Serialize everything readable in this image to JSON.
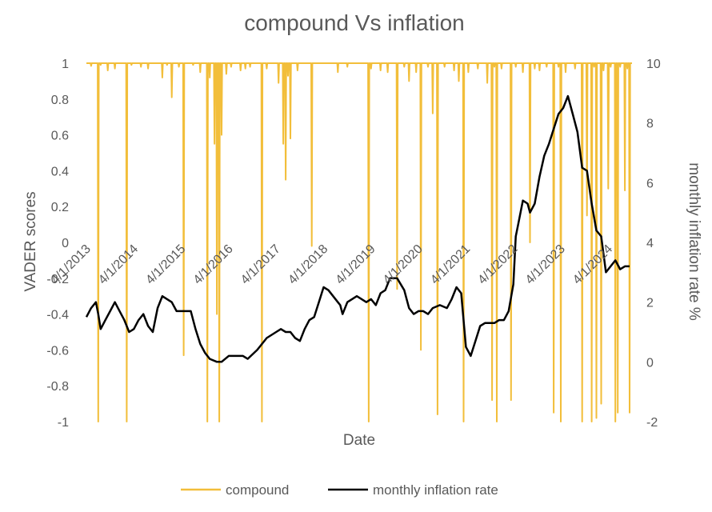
{
  "chart_data": {
    "type": "line",
    "title": "compound Vs inflation",
    "xlabel": "Date",
    "ylabel": "VADER scores",
    "y2label": "monthly inflation rate %",
    "ylim": [
      -1,
      1
    ],
    "y2lim": [
      -2,
      10
    ],
    "y_ticks": [
      "1",
      "0.8",
      "0.6",
      "0.4",
      "0.2",
      "0",
      "-0.2",
      "-0.4",
      "-0.6",
      "-0.8",
      "-1"
    ],
    "y2_ticks": [
      "10",
      "8",
      "6",
      "4",
      "2",
      "0",
      "-2"
    ],
    "x_tick_labels": [
      "4/1/2013",
      "4/1/2014",
      "4/1/2015",
      "4/1/2016",
      "4/1/2017",
      "4/1/2018",
      "4/1/2019",
      "4/1/2020",
      "4/1/2021",
      "4/1/2022",
      "4/1/2023",
      "4/1/2024"
    ],
    "x_tick_years": [
      2013.0,
      2014.0,
      2015.0,
      2016.0,
      2017.0,
      2018.0,
      2019.0,
      2020.0,
      2021.0,
      2022.0,
      2023.0,
      2024.0
    ],
    "xlim": [
      2013.0,
      2024.5
    ],
    "grid": false,
    "legend": "bottom",
    "series": [
      {
        "name": "compound",
        "axis": "left",
        "color": "#F2BE3A",
        "baseline": 1.0,
        "dips": [
          [
            2013.1,
            0.985
          ],
          [
            2013.25,
            -1.0
          ],
          [
            2013.3,
            0.99
          ],
          [
            2013.45,
            0.96
          ],
          [
            2013.6,
            0.97
          ],
          [
            2013.85,
            -1.0
          ],
          [
            2013.95,
            0.99
          ],
          [
            2014.15,
            0.98
          ],
          [
            2014.3,
            0.97
          ],
          [
            2014.6,
            0.92
          ],
          [
            2014.7,
            0.99
          ],
          [
            2014.8,
            0.81
          ],
          [
            2014.95,
            0.98
          ],
          [
            2015.05,
            -0.63
          ],
          [
            2015.25,
            0.99
          ],
          [
            2015.4,
            0.95
          ],
          [
            2015.55,
            -1.0
          ],
          [
            2015.6,
            0.92
          ],
          [
            2015.7,
            0.55
          ],
          [
            2015.75,
            -0.4
          ],
          [
            2015.8,
            -1.0
          ],
          [
            2015.85,
            0.6
          ],
          [
            2015.95,
            0.94
          ],
          [
            2016.05,
            0.98
          ],
          [
            2016.25,
            0.96
          ],
          [
            2016.35,
            0.97
          ],
          [
            2016.45,
            0.98
          ],
          [
            2016.7,
            -1.0
          ],
          [
            2016.8,
            0.97
          ],
          [
            2017.05,
            0.89
          ],
          [
            2017.15,
            0.55
          ],
          [
            2017.2,
            0.35
          ],
          [
            2017.25,
            0.93
          ],
          [
            2017.3,
            0.58
          ],
          [
            2017.45,
            0.96
          ],
          [
            2017.75,
            -0.02
          ],
          [
            2018.3,
            0.95
          ],
          [
            2018.5,
            0.98
          ],
          [
            2018.95,
            -1.0
          ],
          [
            2019.0,
            0.97
          ],
          [
            2019.2,
            0.96
          ],
          [
            2019.35,
            0.95
          ],
          [
            2019.55,
            -0.26
          ],
          [
            2019.7,
            0.98
          ],
          [
            2019.8,
            0.9
          ],
          [
            2019.95,
            0.95
          ],
          [
            2020.05,
            -0.6
          ],
          [
            2020.2,
            0.98
          ],
          [
            2020.3,
            0.72
          ],
          [
            2020.4,
            -0.96
          ],
          [
            2020.55,
            0.98
          ],
          [
            2020.75,
            0.96
          ],
          [
            2020.85,
            0.9
          ],
          [
            2020.95,
            -1.0
          ],
          [
            2021.05,
            0.95
          ],
          [
            2021.25,
            0.97
          ],
          [
            2021.45,
            0.89
          ],
          [
            2021.55,
            -0.88
          ],
          [
            2021.6,
            0.98
          ],
          [
            2021.65,
            -1.0
          ],
          [
            2021.75,
            0.97
          ],
          [
            2021.95,
            -0.88
          ],
          [
            2022.05,
            0.98
          ],
          [
            2022.2,
            0.95
          ],
          [
            2022.35,
            0.0
          ],
          [
            2022.45,
            0.97
          ],
          [
            2022.55,
            0.96
          ],
          [
            2022.7,
            0.98
          ],
          [
            2022.85,
            -0.95
          ],
          [
            2022.95,
            0.98
          ],
          [
            2023.0,
            -1.0
          ],
          [
            2023.1,
            0.95
          ],
          [
            2023.3,
            0.97
          ],
          [
            2023.45,
            -1.0
          ],
          [
            2023.55,
            0.15
          ],
          [
            2023.65,
            -1.0
          ],
          [
            2023.7,
            0.98
          ],
          [
            2023.75,
            -0.98
          ],
          [
            2023.85,
            -0.9
          ],
          [
            2023.9,
            0.96
          ],
          [
            2024.0,
            0.3
          ],
          [
            2024.05,
            0.98
          ],
          [
            2024.15,
            -1.0
          ],
          [
            2024.2,
            -0.95
          ],
          [
            2024.25,
            0.98
          ],
          [
            2024.35,
            0.29
          ],
          [
            2024.4,
            0.97
          ],
          [
            2024.45,
            -0.95
          ]
        ]
      },
      {
        "name": "monthly inflation rate",
        "axis": "right",
        "color": "#000000",
        "points": [
          [
            2013.0,
            1.5
          ],
          [
            2013.1,
            1.8
          ],
          [
            2013.2,
            2.0
          ],
          [
            2013.25,
            1.6
          ],
          [
            2013.3,
            1.1
          ],
          [
            2013.4,
            1.4
          ],
          [
            2013.5,
            1.7
          ],
          [
            2013.6,
            2.0
          ],
          [
            2013.7,
            1.7
          ],
          [
            2013.8,
            1.4
          ],
          [
            2013.9,
            1.0
          ],
          [
            2014.0,
            1.1
          ],
          [
            2014.1,
            1.4
          ],
          [
            2014.2,
            1.6
          ],
          [
            2014.3,
            1.2
          ],
          [
            2014.4,
            1.0
          ],
          [
            2014.5,
            1.8
          ],
          [
            2014.6,
            2.2
          ],
          [
            2014.7,
            2.1
          ],
          [
            2014.8,
            2.0
          ],
          [
            2014.9,
            1.7
          ],
          [
            2015.05,
            1.7
          ],
          [
            2015.2,
            1.7
          ],
          [
            2015.3,
            1.1
          ],
          [
            2015.4,
            0.6
          ],
          [
            2015.5,
            0.3
          ],
          [
            2015.6,
            0.1
          ],
          [
            2015.75,
            0.0
          ],
          [
            2015.85,
            0.0
          ],
          [
            2016.0,
            0.2
          ],
          [
            2016.15,
            0.2
          ],
          [
            2016.3,
            0.2
          ],
          [
            2016.4,
            0.1
          ],
          [
            2016.6,
            0.4
          ],
          [
            2016.8,
            0.8
          ],
          [
            2017.0,
            1.0
          ],
          [
            2017.1,
            1.1
          ],
          [
            2017.2,
            1.0
          ],
          [
            2017.3,
            1.0
          ],
          [
            2017.4,
            0.8
          ],
          [
            2017.5,
            0.7
          ],
          [
            2017.6,
            1.1
          ],
          [
            2017.7,
            1.4
          ],
          [
            2017.8,
            1.5
          ],
          [
            2017.9,
            2.0
          ],
          [
            2018.0,
            2.5
          ],
          [
            2018.1,
            2.4
          ],
          [
            2018.2,
            2.2
          ],
          [
            2018.3,
            2.0
          ],
          [
            2018.35,
            1.9
          ],
          [
            2018.4,
            1.6
          ],
          [
            2018.5,
            2.0
          ],
          [
            2018.6,
            2.1
          ],
          [
            2018.7,
            2.2
          ],
          [
            2018.8,
            2.1
          ],
          [
            2018.9,
            2.0
          ],
          [
            2019.0,
            2.1
          ],
          [
            2019.1,
            1.9
          ],
          [
            2019.2,
            2.3
          ],
          [
            2019.3,
            2.4
          ],
          [
            2019.4,
            2.8
          ],
          [
            2019.55,
            2.8
          ],
          [
            2019.7,
            2.4
          ],
          [
            2019.8,
            1.8
          ],
          [
            2019.9,
            1.6
          ],
          [
            2020.0,
            1.7
          ],
          [
            2020.1,
            1.7
          ],
          [
            2020.2,
            1.6
          ],
          [
            2020.3,
            1.8
          ],
          [
            2020.45,
            1.9
          ],
          [
            2020.6,
            1.8
          ],
          [
            2020.7,
            2.1
          ],
          [
            2020.8,
            2.5
          ],
          [
            2020.9,
            2.3
          ],
          [
            2021.0,
            0.5
          ],
          [
            2021.1,
            0.2
          ],
          [
            2021.2,
            0.7
          ],
          [
            2021.3,
            1.2
          ],
          [
            2021.4,
            1.3
          ],
          [
            2021.5,
            1.3
          ],
          [
            2021.6,
            1.3
          ],
          [
            2021.7,
            1.4
          ],
          [
            2021.8,
            1.4
          ],
          [
            2021.9,
            1.7
          ],
          [
            2022.0,
            2.6
          ],
          [
            2022.05,
            4.2
          ],
          [
            2022.1,
            4.6
          ],
          [
            2022.2,
            5.4
          ],
          [
            2022.3,
            5.3
          ],
          [
            2022.35,
            5.0
          ],
          [
            2022.45,
            5.3
          ],
          [
            2022.55,
            6.2
          ],
          [
            2022.65,
            6.9
          ],
          [
            2022.75,
            7.3
          ],
          [
            2022.85,
            7.8
          ],
          [
            2022.95,
            8.3
          ],
          [
            2023.05,
            8.5
          ],
          [
            2023.15,
            8.9
          ],
          [
            2023.25,
            8.3
          ],
          [
            2023.35,
            7.7
          ],
          [
            2023.45,
            6.5
          ],
          [
            2023.55,
            6.4
          ],
          [
            2023.65,
            5.3
          ],
          [
            2023.75,
            4.4
          ],
          [
            2023.85,
            4.2
          ],
          [
            2023.95,
            3.0
          ],
          [
            2024.05,
            3.2
          ],
          [
            2024.15,
            3.4
          ],
          [
            2024.25,
            3.1
          ],
          [
            2024.35,
            3.2
          ],
          [
            2024.45,
            3.2
          ]
        ]
      }
    ]
  }
}
